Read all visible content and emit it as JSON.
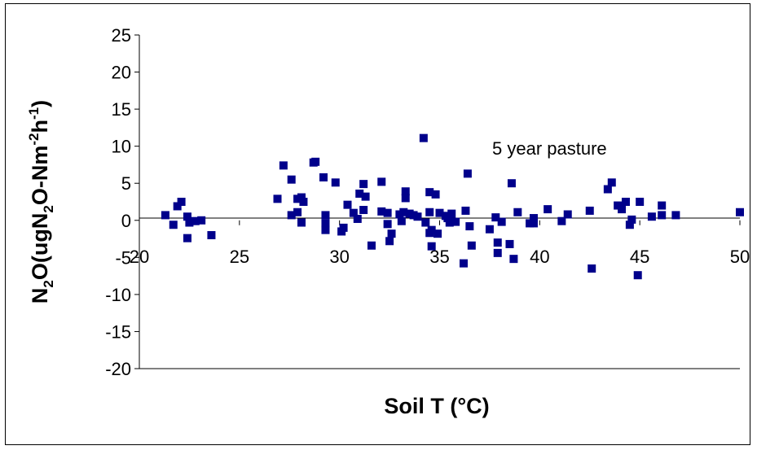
{
  "chart_data": {
    "type": "scatter",
    "xlabel": "Soil T (°C)",
    "ylabel_parts": {
      "a": "N",
      "b": "2",
      "c": "O(ugN",
      "d": "2",
      "e": "O-Nm",
      "f": "-2",
      "g": "h",
      "h": "-1",
      "i": ")"
    },
    "annotation": "5 year pasture",
    "xlim": [
      20,
      50
    ],
    "ylim": [
      -20,
      25
    ],
    "xticks": [
      20,
      25,
      30,
      35,
      40,
      45,
      50
    ],
    "yticks": [
      25,
      20,
      15,
      10,
      5,
      0,
      -5,
      -10,
      -15,
      -20
    ],
    "x_tick_labels": [
      "20",
      "25",
      "30",
      "35",
      "40",
      "45",
      "50"
    ],
    "y_tick_labels": [
      "25",
      "20",
      "15",
      "10",
      "5",
      "0",
      "-5",
      "-10",
      "-15",
      "-20"
    ],
    "grid": false,
    "marker_color": "#00008B",
    "series": [
      {
        "points": [
          [
            21.3,
            0.7
          ],
          [
            21.7,
            -0.6
          ],
          [
            21.9,
            1.9
          ],
          [
            22.1,
            2.5
          ],
          [
            22.4,
            0.5
          ],
          [
            22.4,
            -2.4
          ],
          [
            22.5,
            -0.3
          ],
          [
            22.8,
            -0.1
          ],
          [
            23.1,
            0.0
          ],
          [
            23.6,
            -2.0
          ],
          [
            26.9,
            2.9
          ],
          [
            27.2,
            7.4
          ],
          [
            27.6,
            5.5
          ],
          [
            27.6,
            0.7
          ],
          [
            27.9,
            2.9
          ],
          [
            27.9,
            1.1
          ],
          [
            28.1,
            3.1
          ],
          [
            28.1,
            -0.3
          ],
          [
            28.2,
            2.5
          ],
          [
            28.7,
            7.8
          ],
          [
            28.8,
            7.9
          ],
          [
            29.2,
            5.8
          ],
          [
            29.3,
            0.7
          ],
          [
            29.3,
            -0.4
          ],
          [
            29.3,
            -1.3
          ],
          [
            29.8,
            5.1
          ],
          [
            30.1,
            -1.5
          ],
          [
            30.2,
            -1.0
          ],
          [
            30.4,
            2.1
          ],
          [
            30.7,
            1.0
          ],
          [
            30.9,
            0.2
          ],
          [
            31.0,
            3.6
          ],
          [
            31.2,
            4.9
          ],
          [
            31.2,
            1.4
          ],
          [
            31.3,
            3.2
          ],
          [
            31.6,
            -3.4
          ],
          [
            32.1,
            5.2
          ],
          [
            32.1,
            1.2
          ],
          [
            32.4,
            1.0
          ],
          [
            32.4,
            -0.5
          ],
          [
            32.5,
            -2.8
          ],
          [
            32.6,
            -1.8
          ],
          [
            33.0,
            0.8
          ],
          [
            33.1,
            -0.1
          ],
          [
            33.2,
            1.1
          ],
          [
            33.3,
            3.9
          ],
          [
            33.3,
            3.0
          ],
          [
            33.5,
            0.9
          ],
          [
            33.7,
            0.7
          ],
          [
            33.9,
            0.5
          ],
          [
            34.2,
            11.1
          ],
          [
            34.3,
            -0.3
          ],
          [
            34.5,
            3.8
          ],
          [
            34.5,
            1.1
          ],
          [
            34.5,
            -1.7
          ],
          [
            34.6,
            -1.3
          ],
          [
            34.6,
            -3.5
          ],
          [
            34.8,
            3.5
          ],
          [
            34.9,
            -1.8
          ],
          [
            35.0,
            1.0
          ],
          [
            35.3,
            0.6
          ],
          [
            35.4,
            0.3
          ],
          [
            35.5,
            -0.3
          ],
          [
            35.6,
            0.9
          ],
          [
            35.8,
            -0.2
          ],
          [
            36.2,
            -5.8
          ],
          [
            36.3,
            1.3
          ],
          [
            36.4,
            6.3
          ],
          [
            36.5,
            -0.8
          ],
          [
            36.6,
            -3.4
          ],
          [
            37.5,
            -1.2
          ],
          [
            37.8,
            0.4
          ],
          [
            37.9,
            -3.0
          ],
          [
            37.9,
            -4.4
          ],
          [
            38.1,
            -0.2
          ],
          [
            38.5,
            -3.2
          ],
          [
            38.6,
            5.0
          ],
          [
            38.7,
            -5.2
          ],
          [
            38.9,
            1.1
          ],
          [
            39.5,
            -0.4
          ],
          [
            39.7,
            0.3
          ],
          [
            39.7,
            -0.4
          ],
          [
            40.4,
            1.5
          ],
          [
            41.1,
            -0.1
          ],
          [
            41.4,
            0.8
          ],
          [
            42.5,
            1.3
          ],
          [
            42.6,
            -6.5
          ],
          [
            43.4,
            4.2
          ],
          [
            43.6,
            5.1
          ],
          [
            43.9,
            2.0
          ],
          [
            44.1,
            1.5
          ],
          [
            44.3,
            2.5
          ],
          [
            44.5,
            -0.6
          ],
          [
            44.6,
            0.1
          ],
          [
            44.9,
            -7.4
          ],
          [
            45.0,
            2.5
          ],
          [
            45.6,
            0.5
          ],
          [
            46.1,
            2.0
          ],
          [
            46.1,
            0.7
          ],
          [
            46.8,
            0.7
          ],
          [
            50.0,
            1.1
          ]
        ]
      }
    ]
  }
}
